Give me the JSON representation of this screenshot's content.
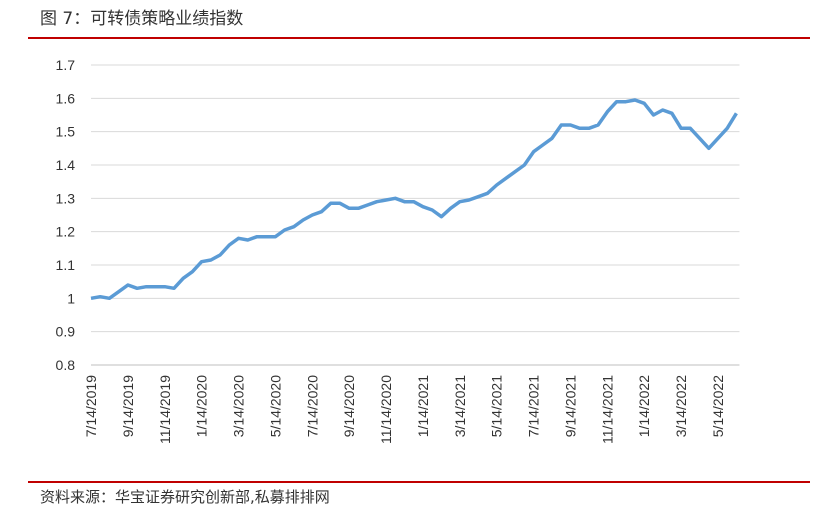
{
  "chart_data": {
    "type": "line",
    "title": "图 7：可转债策略业绩指数",
    "source": "资料来源：华宝证券研究创新部,私募排排网",
    "categories": [
      "7/14/2019",
      null,
      null,
      null,
      "9/14/2019",
      null,
      null,
      null,
      "11/14/2019",
      null,
      null,
      null,
      "1/14/2020",
      null,
      null,
      null,
      "3/14/2020",
      null,
      null,
      null,
      "5/14/2020",
      null,
      null,
      null,
      "7/14/2020",
      null,
      null,
      null,
      "9/14/2020",
      null,
      null,
      null,
      "11/14/2020",
      null,
      null,
      null,
      "1/14/2021",
      null,
      null,
      null,
      "3/14/2021",
      null,
      null,
      null,
      "5/14/2021",
      null,
      null,
      null,
      "7/14/2021",
      null,
      null,
      null,
      "9/14/2021",
      null,
      null,
      null,
      "11/14/2021",
      null,
      null,
      null,
      "1/14/2022",
      null,
      null,
      null,
      "3/14/2022",
      null,
      null,
      null,
      "5/14/2022",
      null,
      null
    ],
    "series": [
      {
        "color": "#5b9bd5",
        "values": [
          1.0,
          1.005,
          1.0,
          1.02,
          1.04,
          1.03,
          1.035,
          1.035,
          1.035,
          1.03,
          1.06,
          1.08,
          1.11,
          1.115,
          1.13,
          1.16,
          1.18,
          1.175,
          1.185,
          1.185,
          1.185,
          1.205,
          1.215,
          1.235,
          1.25,
          1.26,
          1.285,
          1.285,
          1.27,
          1.27,
          1.28,
          1.29,
          1.295,
          1.3,
          1.29,
          1.29,
          1.275,
          1.265,
          1.245,
          1.27,
          1.29,
          1.295,
          1.305,
          1.315,
          1.34,
          1.36,
          1.38,
          1.4,
          1.44,
          1.46,
          1.48,
          1.52,
          1.52,
          1.51,
          1.51,
          1.52,
          1.56,
          1.59,
          1.59,
          1.595,
          1.585,
          1.55,
          1.565,
          1.555,
          1.51,
          1.51,
          1.48,
          1.45,
          1.48,
          1.51,
          1.555
        ]
      }
    ],
    "ylim": [
      0.8,
      1.7
    ],
    "yticks": [
      0.8,
      0.9,
      1,
      1.1,
      1.2,
      1.3,
      1.4,
      1.5,
      1.6,
      1.7
    ],
    "grid": true
  }
}
